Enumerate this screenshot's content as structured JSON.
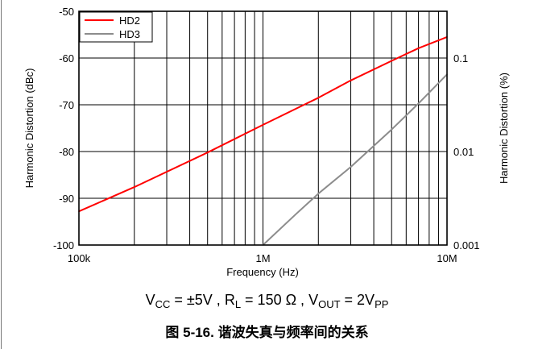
{
  "chart_data": {
    "type": "line",
    "xscale": "log",
    "x_range": [
      100000,
      10000000
    ],
    "x_ticks": [
      "100k",
      "1M",
      "10M"
    ],
    "xlabel": "Frequency (Hz)",
    "ylabel_left": "Harmonic Distortion (dBc)",
    "ylim_left": [
      -100,
      -50
    ],
    "y_ticks_left": [
      "-50",
      "-60",
      "-70",
      "-80",
      "-90",
      "-100"
    ],
    "ylabel_right": "Harmonic Distortion (%)",
    "yscale_right": "log",
    "y_ticks_right": [
      "0.1",
      "0.01",
      "0.001"
    ],
    "grid": true,
    "legend_position": "top-left",
    "series": [
      {
        "name": "HD2",
        "color": "#ff0000",
        "x": [
          100000,
          200000,
          500000,
          1000000,
          2000000,
          3000000,
          5000000,
          7000000,
          10000000
        ],
        "y": [
          -92.8,
          -87.6,
          -80.2,
          -74.3,
          -68.5,
          -64.8,
          -60.6,
          -57.9,
          -55.5
        ]
      },
      {
        "name": "HD3",
        "color": "#8c8c8c",
        "x": [
          1000000,
          1500000,
          2000000,
          3000000,
          5000000,
          7000000,
          10000000
        ],
        "y": [
          -100,
          -93.5,
          -89.0,
          -83.3,
          -75.3,
          -69.7,
          -63.5
        ]
      }
    ]
  },
  "conditions": {
    "vcc_sym": "V",
    "vcc_sub": "CC",
    "vcc_val": " = ±5V , ",
    "rl_sym": "R",
    "rl_sub": "L",
    "rl_val": " = 150 Ω , ",
    "vout_sym": "V",
    "vout_sub": "OUT",
    "vout_val": " = 2V",
    "vpp_sub": "PP"
  },
  "caption": "图 5-16. 谐波失真与频率间的关系"
}
